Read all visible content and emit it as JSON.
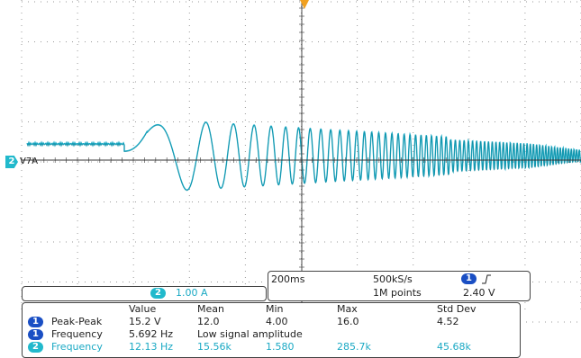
{
  "channel_marker": {
    "number": "2",
    "label": "V7A"
  },
  "colors": {
    "trace": "#1aa9c4",
    "trace_dark": "#0a6f80",
    "ch1": "#1a4fc4",
    "ch2": "#21b9cc",
    "trigger": "#f0a020"
  },
  "acquisition": {
    "timebase": "200ms",
    "sample_rate": "500kS/s",
    "record_length": "1M points",
    "trigger_channel": "1",
    "trigger_slope_icon": "rising-edge-icon",
    "trigger_level": "2.40 V"
  },
  "channel_scale": {
    "channel": "2",
    "value": "1.00 A"
  },
  "measurements": {
    "headers": [
      "Value",
      "Mean",
      "Min",
      "Max",
      "Std Dev"
    ],
    "rows": [
      {
        "channel": "1",
        "name": "Peak-Peak",
        "value": "15.2 V",
        "mean": "12.0",
        "min": "4.00",
        "max": "16.0",
        "std": "4.52"
      },
      {
        "channel": "1",
        "name": "Frequency",
        "value": "5.692 Hz",
        "note": "Low signal amplitude"
      },
      {
        "channel": "2",
        "name": "Frequency",
        "value": "12.13 Hz",
        "mean": "15.56k",
        "min": "1.580",
        "max": "285.7k",
        "std": "45.68k"
      }
    ]
  }
}
